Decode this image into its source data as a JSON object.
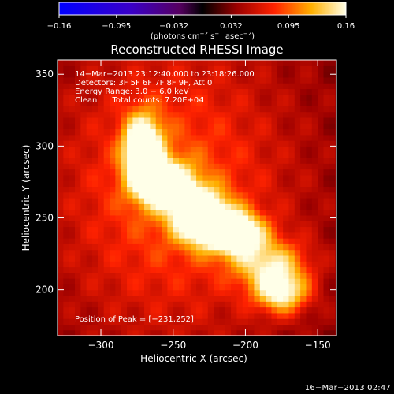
{
  "chart_data": {
    "type": "heatmap",
    "title": "Reconstructed RHESSI Image",
    "xlabel": "Heliocentric X (arcsec)",
    "ylabel": "Heliocentric Y (arcsec)",
    "xlim": [
      -330,
      -137
    ],
    "ylim": [
      168,
      360
    ],
    "xticks": [
      -300,
      -250,
      -200,
      -150
    ],
    "xtick_labels": [
      "−300",
      "−250",
      "−200",
      "−150"
    ],
    "yticks": [
      200,
      250,
      300,
      350
    ],
    "ytick_labels": [
      "200",
      "250",
      "300",
      "350"
    ],
    "colorbar": {
      "range": [
        -0.16,
        0.16
      ],
      "tick_labels": [
        "−0.16",
        "−0.095",
        "−0.032",
        "0.032",
        "0.095",
        "0.16"
      ],
      "unit_prefix": "(photons cm",
      "unit_sup1": "−2",
      "unit_mid": " s",
      "unit_sup2": "−1",
      "unit_mid2": " asec",
      "unit_sup3": "−2",
      "unit_suffix": ")"
    },
    "annotations": [
      "14−Mar−2013 23:12:40.000 to 23:18:26.000",
      "Detectors: 3F 5F 6F 7F 8F 9F, Att 0",
      "Energy Range: 3.0 − 6.0 keV",
      "Clean      Total counts: 7.20E+04"
    ],
    "peak_label": "Position of Peak = [−231,252]",
    "peak": [
      -231,
      252
    ],
    "emission_sources": [
      {
        "x": -271,
        "y": 298,
        "sx": 9,
        "sy": 16,
        "amp": 0.16
      },
      {
        "x": -256,
        "y": 274,
        "sx": 14,
        "sy": 11,
        "amp": 0.13
      },
      {
        "x": -231,
        "y": 252,
        "sx": 13,
        "sy": 12,
        "amp": 0.16
      },
      {
        "x": -208,
        "y": 240,
        "sx": 14,
        "sy": 10,
        "amp": 0.15
      },
      {
        "x": -183,
        "y": 218,
        "sx": 18,
        "sy": 12,
        "amp": 0.09
      },
      {
        "x": -175,
        "y": 198,
        "sx": 13,
        "sy": 10,
        "amp": 0.11
      },
      {
        "x": -250,
        "y": 270,
        "sx": 55,
        "sy": 70,
        "amp": 0.06
      }
    ],
    "background_level": 0.035
  },
  "footer_date": "16−Mar−2013 02:47"
}
